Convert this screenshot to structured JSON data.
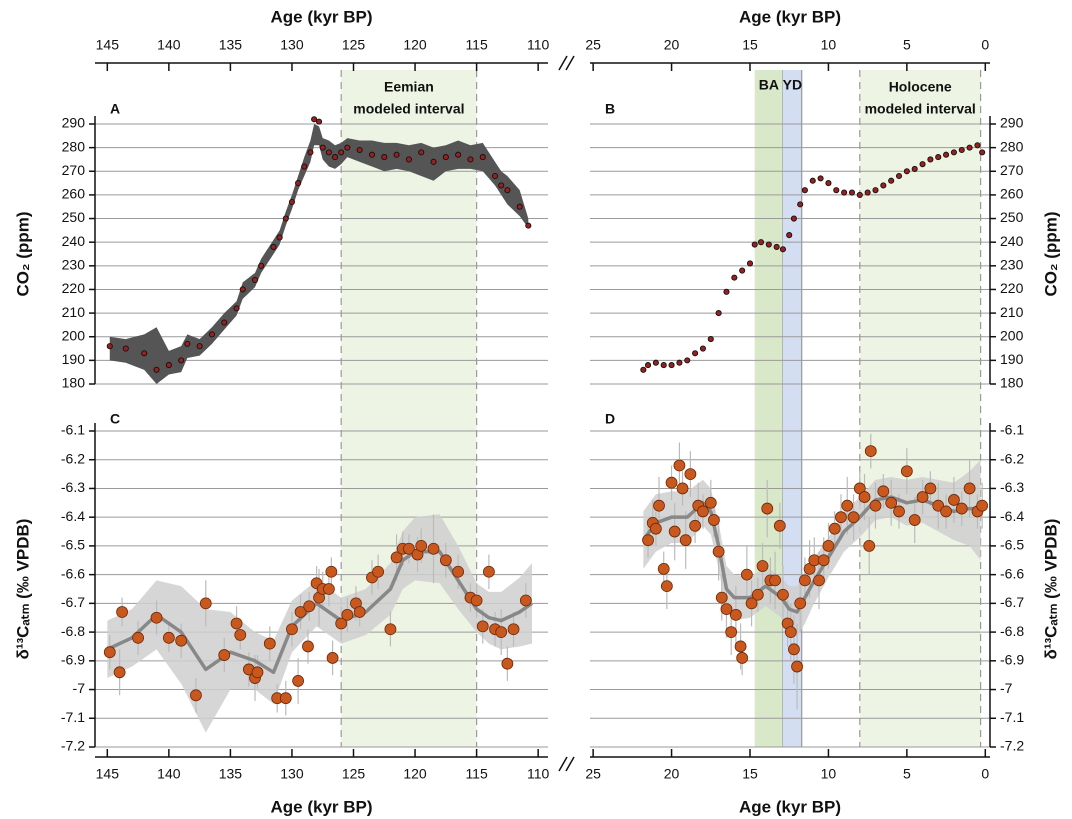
{
  "chart_data": [
    {
      "type": "scatter",
      "panel": "A",
      "xlabel": "Age (kyr BP)",
      "xaxis": "top",
      "yaxis": "left",
      "ylabel": "CO₂ (ppm)",
      "xlim": [
        146,
        109.2
      ],
      "xticks": [
        145,
        140,
        135,
        130,
        125,
        120,
        115,
        110
      ],
      "ylim": [
        180,
        290
      ],
      "yticks": [
        180,
        190,
        200,
        210,
        220,
        230,
        240,
        250,
        260,
        270,
        280,
        290
      ],
      "grid": true,
      "regions": [
        {
          "label": "Eemian",
          "sublabel": "modeled interval",
          "range": [
            126,
            115
          ],
          "color": "#eef4e4",
          "dashed": true
        }
      ],
      "color": "#9a2020",
      "band_color": "#555555",
      "x": [
        144.8,
        143.5,
        142,
        141,
        140,
        139,
        138.5,
        137.5,
        136.5,
        135.5,
        134.5,
        134,
        133,
        132.5,
        131.5,
        131,
        130.5,
        130,
        129.5,
        129,
        128.5,
        128.2,
        127.8,
        127.5,
        127,
        126.5,
        126,
        125.5,
        124.5,
        123.5,
        122.5,
        121.5,
        120.5,
        119.5,
        118.5,
        117.5,
        116.5,
        115.5,
        114.5,
        113.5,
        113,
        112.5,
        111.5,
        110.8
      ],
      "values": [
        196,
        195,
        193,
        186,
        188,
        190,
        197,
        196,
        201,
        206,
        212,
        220,
        224,
        230,
        238,
        242,
        250,
        257,
        265,
        272,
        278,
        292,
        291,
        280,
        278,
        276,
        278,
        280,
        279,
        277,
        276,
        277,
        275,
        278,
        274,
        276,
        277,
        275,
        276,
        268,
        264,
        262,
        255,
        247
      ],
      "lower": [
        190,
        189,
        186,
        180,
        184,
        185,
        191,
        192,
        197,
        203,
        209,
        216,
        221,
        227,
        235,
        239,
        247,
        254,
        262,
        268,
        274,
        281,
        281,
        275,
        272,
        271,
        273,
        276,
        274,
        272,
        270,
        271,
        270,
        268,
        266,
        270,
        271,
        271,
        270,
        264,
        260,
        256,
        251,
        246
      ],
      "upper": [
        200,
        199,
        201,
        204,
        194,
        196,
        201,
        199,
        204,
        210,
        215,
        223,
        227,
        233,
        241,
        245,
        253,
        260,
        268,
        276,
        283,
        290,
        289,
        284,
        283,
        281,
        282,
        284,
        283,
        283,
        282,
        282,
        281,
        282,
        280,
        281,
        283,
        281,
        282,
        274,
        270,
        268,
        262,
        250
      ]
    },
    {
      "type": "scatter",
      "panel": "B",
      "xlabel": "Age (kyr BP)",
      "xaxis": "top",
      "yaxis": "right",
      "ylabel": "CO₂ (ppm)",
      "xlim": [
        25.2,
        -0.3
      ],
      "xticks": [
        25,
        20,
        15,
        10,
        5,
        0
      ],
      "ylim": [
        180,
        290
      ],
      "yticks": [
        180,
        190,
        200,
        210,
        220,
        230,
        240,
        250,
        260,
        270,
        280,
        290
      ],
      "grid": true,
      "regions": [
        {
          "label": "BA",
          "range": [
            14.7,
            12.9
          ],
          "color": "#d9e8c9",
          "dashed": false
        },
        {
          "label": "YD",
          "range": [
            12.9,
            11.7
          ],
          "color": "#d3def3",
          "dashed": false
        },
        {
          "label": "Holocene",
          "sublabel": "modeled interval",
          "range": [
            8,
            0.3
          ],
          "color": "#eef4e4",
          "dashed": true
        }
      ],
      "color": "#9a2020",
      "x": [
        21.8,
        21.5,
        21,
        20.5,
        20,
        19.5,
        19,
        18.5,
        18,
        17.5,
        17,
        16.5,
        16,
        15.5,
        15,
        14.7,
        14.3,
        13.8,
        13.3,
        12.9,
        12.5,
        12.2,
        11.8,
        11.5,
        11,
        10.5,
        10,
        9.5,
        9,
        8.5,
        8,
        7.5,
        7,
        6.5,
        6,
        5.5,
        5,
        4.5,
        4,
        3.5,
        3,
        2.5,
        2,
        1.5,
        1,
        0.5,
        0.2
      ],
      "values": [
        186,
        188,
        189,
        188,
        188,
        189,
        190,
        193,
        195,
        199,
        210,
        219,
        225,
        228,
        231,
        239,
        240,
        239,
        238,
        237,
        243,
        250,
        256,
        262,
        266,
        267,
        265,
        262,
        261,
        261,
        260,
        261,
        262,
        264,
        266,
        268,
        270,
        271,
        273,
        275,
        276,
        277,
        278,
        279,
        280,
        281,
        278
      ]
    },
    {
      "type": "scatter",
      "panel": "C",
      "xlabel": "Age (kyr BP)",
      "xaxis": "bottom",
      "yaxis": "left",
      "ylabel": "δ¹³Cₐₜₘ (‰ VPDB)",
      "xlim": [
        146,
        109.2
      ],
      "xticks": [
        145,
        140,
        135,
        130,
        125,
        120,
        115,
        110
      ],
      "ylim": [
        -7.2,
        -6.1
      ],
      "yticks": [
        -6.1,
        -6.2,
        -6.3,
        -6.4,
        -6.5,
        -6.6,
        -6.7,
        -6.8,
        -6.9,
        -7,
        -7.1,
        -7.2
      ],
      "grid": true,
      "color": "#c9581f",
      "error_color": "#bbbbbb",
      "x": [
        144.8,
        144,
        143.8,
        142.5,
        141,
        140,
        139,
        137.8,
        137,
        135.5,
        134.5,
        134.2,
        133.5,
        133,
        132.8,
        131.8,
        131.2,
        130.5,
        130,
        129.5,
        129.3,
        128.7,
        128.6,
        128,
        127.8,
        127.5,
        127,
        126.8,
        126.7,
        126,
        125.5,
        124.8,
        124.5,
        123.5,
        123,
        122,
        121.5,
        121,
        120.5,
        119.8,
        119.5,
        118.5,
        117.5,
        116.5,
        115.5,
        115,
        114.5,
        114,
        113.5,
        113,
        112.5,
        112,
        111
      ],
      "values": [
        -6.87,
        -6.94,
        -6.73,
        -6.82,
        -6.75,
        -6.82,
        -6.83,
        -7.02,
        -6.7,
        -6.88,
        -6.77,
        -6.81,
        -6.93,
        -6.96,
        -6.94,
        -6.84,
        -7.03,
        -7.03,
        -6.79,
        -6.97,
        -6.73,
        -6.85,
        -6.71,
        -6.63,
        -6.68,
        -6.65,
        -6.65,
        -6.59,
        -6.89,
        -6.77,
        -6.74,
        -6.7,
        -6.73,
        -6.61,
        -6.59,
        -6.79,
        -6.54,
        -6.51,
        -6.51,
        -6.53,
        -6.5,
        -6.51,
        -6.55,
        -6.59,
        -6.68,
        -6.69,
        -6.78,
        -6.59,
        -6.79,
        -6.8,
        -6.91,
        -6.79,
        -6.69
      ],
      "errors": [
        0.06,
        0.08,
        0.05,
        0.06,
        0.06,
        0.05,
        0.06,
        0.06,
        0.08,
        0.06,
        0.06,
        0.05,
        0.06,
        0.08,
        0.06,
        0.06,
        0.05,
        0.06,
        0.06,
        0.08,
        0.06,
        0.06,
        0.05,
        0.06,
        0.1,
        0.06,
        0.06,
        0.05,
        0.06,
        0.06,
        0.06,
        0.06,
        0.05,
        0.06,
        0.06,
        0.06,
        0.08,
        0.06,
        0.05,
        0.06,
        0.06,
        0.12,
        0.06,
        0.06,
        0.05,
        0.06,
        0.06,
        0.06,
        0.06,
        0.08,
        0.06,
        0.06,
        0.06
      ],
      "fit": {
        "color": "#888888",
        "band_color": "#cfcfcf",
        "x": [
          145,
          143,
          141,
          139,
          137,
          135,
          133,
          131.5,
          130,
          128,
          126,
          124,
          122,
          121,
          120,
          118,
          116.5,
          115,
          114,
          113,
          111.5,
          110.5
        ],
        "values": [
          -6.86,
          -6.82,
          -6.74,
          -6.8,
          -6.93,
          -6.87,
          -6.9,
          -6.94,
          -6.78,
          -6.7,
          -6.76,
          -6.73,
          -6.65,
          -6.55,
          -6.52,
          -6.52,
          -6.62,
          -6.72,
          -6.75,
          -6.76,
          -6.73,
          -6.7
        ],
        "lower": [
          -6.96,
          -6.92,
          -6.86,
          -6.98,
          -7.15,
          -7.0,
          -7.0,
          -7.05,
          -6.87,
          -6.78,
          -6.84,
          -6.81,
          -6.74,
          -6.65,
          -6.62,
          -6.63,
          -6.72,
          -6.8,
          -6.84,
          -6.86,
          -6.85,
          -6.84
        ],
        "upper": [
          -6.76,
          -6.72,
          -6.62,
          -6.64,
          -6.72,
          -6.73,
          -6.8,
          -6.83,
          -6.69,
          -6.62,
          -6.68,
          -6.65,
          -6.56,
          -6.45,
          -6.4,
          -6.39,
          -6.5,
          -6.63,
          -6.66,
          -6.66,
          -6.61,
          -6.56
        ]
      }
    },
    {
      "type": "scatter",
      "panel": "D",
      "xlabel": "Age (kyr BP)",
      "xaxis": "bottom",
      "yaxis": "right",
      "ylabel": "δ¹³Cₐₜₘ (‰ VPDB)",
      "xlim": [
        25.2,
        -0.3
      ],
      "xticks": [
        25,
        20,
        15,
        10,
        5,
        0
      ],
      "ylim": [
        -7.2,
        -6.1
      ],
      "yticks": [
        -6.1,
        -6.2,
        -6.3,
        -6.4,
        -6.5,
        -6.6,
        -6.7,
        -6.8,
        -6.9,
        -7,
        -7.1,
        -7.2
      ],
      "grid": true,
      "color": "#c9581f",
      "error_color": "#bbbbbb",
      "x": [
        21.5,
        21.2,
        21,
        20.8,
        20.5,
        20.3,
        20,
        19.8,
        19.5,
        19.3,
        19.1,
        18.8,
        18.5,
        18.3,
        18,
        17.5,
        17.3,
        17,
        16.8,
        16.5,
        16.2,
        15.9,
        15.6,
        15.5,
        15.2,
        14.9,
        14.5,
        14.2,
        13.9,
        13.7,
        13.4,
        13.1,
        12.9,
        12.6,
        12.4,
        12.2,
        12,
        11.8,
        11.5,
        11.2,
        10.9,
        10.6,
        10.3,
        10,
        9.6,
        9.2,
        8.8,
        8.4,
        8,
        7.7,
        7.4,
        7.3,
        7,
        6.5,
        6,
        5.5,
        5,
        4.5,
        4,
        3.5,
        3,
        2.5,
        2,
        1.5,
        1,
        0.5,
        0.2
      ],
      "values": [
        -6.48,
        -6.42,
        -6.44,
        -6.36,
        -6.58,
        -6.64,
        -6.28,
        -6.45,
        -6.22,
        -6.3,
        -6.48,
        -6.25,
        -6.43,
        -6.36,
        -6.38,
        -6.35,
        -6.41,
        -6.52,
        -6.68,
        -6.72,
        -6.8,
        -6.74,
        -6.85,
        -6.89,
        -6.6,
        -6.7,
        -6.67,
        -6.57,
        -6.37,
        -6.62,
        -6.62,
        -6.43,
        -6.67,
        -6.77,
        -6.8,
        -6.86,
        -6.92,
        -6.7,
        -6.62,
        -6.58,
        -6.55,
        -6.62,
        -6.55,
        -6.5,
        -6.44,
        -6.4,
        -6.36,
        -6.4,
        -6.3,
        -6.33,
        -6.5,
        -6.17,
        -6.36,
        -6.31,
        -6.35,
        -6.38,
        -6.24,
        -6.41,
        -6.33,
        -6.3,
        -6.36,
        -6.38,
        -6.34,
        -6.37,
        -6.3,
        -6.38,
        -6.36
      ],
      "errors": [
        0.06,
        0.08,
        0.06,
        0.1,
        0.06,
        0.08,
        0.06,
        0.1,
        0.08,
        0.06,
        0.1,
        0.08,
        0.06,
        0.08,
        0.06,
        0.08,
        0.06,
        0.1,
        0.08,
        0.1,
        0.08,
        0.1,
        0.08,
        0.06,
        0.1,
        0.08,
        0.06,
        0.08,
        0.1,
        0.08,
        0.1,
        0.08,
        0.1,
        0.08,
        0.1,
        0.12,
        0.15,
        0.1,
        0.08,
        0.1,
        0.08,
        0.1,
        0.08,
        0.08,
        0.06,
        0.08,
        0.1,
        0.08,
        0.06,
        0.08,
        0.1,
        0.06,
        0.08,
        0.06,
        0.08,
        0.06,
        0.08,
        0.08,
        0.06,
        0.06,
        0.08,
        0.06,
        0.08,
        0.06,
        0.1,
        0.06,
        0.08
      ],
      "fit": {
        "color": "#888888",
        "band_color": "#cfcfcf",
        "x": [
          21.8,
          21,
          20,
          19,
          18,
          17.5,
          17,
          16.5,
          16,
          15,
          14,
          13,
          12.5,
          12,
          11.5,
          11,
          10,
          9,
          8,
          7,
          6,
          5,
          4,
          3,
          2,
          1,
          0.3
        ],
        "values": [
          -6.48,
          -6.42,
          -6.4,
          -6.4,
          -6.35,
          -6.38,
          -6.5,
          -6.65,
          -6.68,
          -6.68,
          -6.64,
          -6.68,
          -6.72,
          -6.73,
          -6.68,
          -6.63,
          -6.54,
          -6.45,
          -6.4,
          -6.34,
          -6.33,
          -6.35,
          -6.34,
          -6.36,
          -6.38,
          -6.37,
          -6.37
        ],
        "lower": [
          -6.58,
          -6.52,
          -6.49,
          -6.49,
          -6.43,
          -6.46,
          -6.58,
          -6.73,
          -6.76,
          -6.75,
          -6.71,
          -6.75,
          -6.8,
          -6.82,
          -6.77,
          -6.71,
          -6.61,
          -6.52,
          -6.47,
          -6.41,
          -6.4,
          -6.43,
          -6.42,
          -6.45,
          -6.48,
          -6.5,
          -6.55
        ],
        "upper": [
          -6.38,
          -6.32,
          -6.31,
          -6.31,
          -6.27,
          -6.3,
          -6.42,
          -6.57,
          -6.6,
          -6.61,
          -6.57,
          -6.61,
          -6.64,
          -6.64,
          -6.59,
          -6.55,
          -6.47,
          -6.38,
          -6.33,
          -6.27,
          -6.26,
          -6.27,
          -6.26,
          -6.27,
          -6.28,
          -6.24,
          -6.2
        ]
      }
    }
  ]
}
